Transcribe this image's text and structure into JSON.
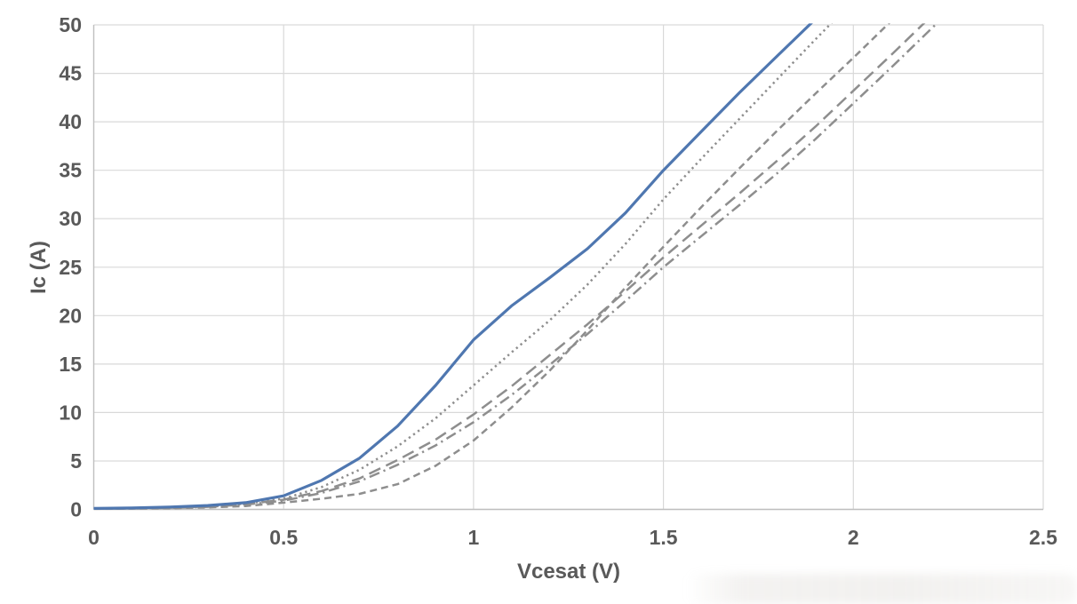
{
  "chart_data": {
    "type": "line",
    "title": "",
    "xlabel": "Vcesat (V)",
    "ylabel": "Ic (A)",
    "xlim": [
      0,
      2.5
    ],
    "ylim": [
      0,
      50
    ],
    "grid": true,
    "legend_position": "none",
    "xticks": {
      "values": [
        0,
        0.5,
        1,
        1.5,
        2,
        2.5
      ],
      "labels": [
        "0",
        "0.5",
        "1",
        "1.5",
        "2",
        "2.5"
      ]
    },
    "yticks": {
      "values": [
        0,
        5,
        10,
        15,
        20,
        25,
        30,
        35,
        40,
        45,
        50
      ],
      "labels": [
        "0",
        "5",
        "10",
        "15",
        "20",
        "25",
        "30",
        "35",
        "40",
        "45",
        "50"
      ]
    },
    "colors": {
      "grid": "#d9d9d9",
      "axis": "#bfbfbf",
      "text": "#595959",
      "blue_series": "#4f77b0",
      "gray_series": "#8e8e8e",
      "background": "#ffffff"
    },
    "x": [
      0,
      0.1,
      0.2,
      0.3,
      0.4,
      0.5,
      0.6,
      0.7,
      0.8,
      0.9,
      1.0,
      1.1,
      1.2,
      1.3,
      1.4,
      1.5,
      1.6,
      1.7,
      1.8,
      1.9,
      2.0,
      2.1,
      2.2,
      2.3
    ],
    "series": [
      {
        "name": "curve-solid-blue",
        "line_style": "solid",
        "color": "#4f77b0",
        "values": [
          0.1,
          0.15,
          0.25,
          0.4,
          0.7,
          1.4,
          3.0,
          5.3,
          8.6,
          12.8,
          17.5,
          21.0,
          23.9,
          26.9,
          30.6,
          35.0,
          39.0,
          43.0,
          46.8,
          50.6,
          null,
          null,
          null,
          null
        ]
      },
      {
        "name": "curve-dotted-gray",
        "line_style": "dotted",
        "color": "#8e8e8e",
        "values": [
          0.08,
          0.12,
          0.2,
          0.33,
          0.6,
          1.1,
          2.3,
          4.1,
          6.5,
          9.4,
          12.8,
          16.2,
          19.5,
          23.2,
          27.4,
          32.0,
          36.2,
          40.3,
          44.4,
          48.5,
          52.5,
          null,
          null,
          null
        ]
      },
      {
        "name": "curve-medium-dash-gray",
        "line_style": "dashed",
        "color": "#8e8e8e",
        "values": [
          0.05,
          0.08,
          0.12,
          0.2,
          0.35,
          0.7,
          1.1,
          1.6,
          2.6,
          4.5,
          7.1,
          10.5,
          14.3,
          18.5,
          22.9,
          27.1,
          31.2,
          35.2,
          39.1,
          42.9,
          46.6,
          50.4,
          null,
          null
        ]
      },
      {
        "name": "curve-long-dash-gray",
        "line_style": "long-dash",
        "color": "#8e8e8e",
        "values": [
          0.08,
          0.1,
          0.17,
          0.3,
          0.55,
          1.0,
          1.9,
          3.2,
          5.1,
          7.2,
          9.8,
          12.7,
          15.9,
          19.1,
          22.5,
          26.0,
          29.3,
          32.6,
          36.0,
          39.5,
          43.2,
          46.9,
          50.7,
          null
        ]
      },
      {
        "name": "curve-dash-dot-gray",
        "line_style": "dash-dot",
        "color": "#8e8e8e",
        "values": [
          0.07,
          0.1,
          0.15,
          0.27,
          0.5,
          0.9,
          1.7,
          2.9,
          4.6,
          6.6,
          9.0,
          11.8,
          14.9,
          18.1,
          21.5,
          25.0,
          28.2,
          31.4,
          34.7,
          38.2,
          41.9,
          45.6,
          49.4,
          53.2
        ]
      }
    ]
  }
}
